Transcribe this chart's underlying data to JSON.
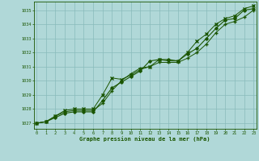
{
  "x": [
    0,
    1,
    2,
    3,
    4,
    5,
    6,
    7,
    8,
    9,
    10,
    11,
    12,
    13,
    14,
    15,
    16,
    17,
    18,
    19,
    20,
    21,
    22,
    23
  ],
  "line1": [
    1027.0,
    1027.1,
    1027.4,
    1027.7,
    1027.8,
    1027.8,
    1027.8,
    1028.6,
    1029.5,
    1029.9,
    1030.3,
    1030.7,
    1031.4,
    1031.5,
    1031.5,
    1031.4,
    1031.9,
    1032.3,
    1033.0,
    1033.7,
    1034.3,
    1034.4,
    1035.0,
    1035.1
  ],
  "line2": [
    1027.0,
    1027.1,
    1027.5,
    1027.8,
    1027.9,
    1027.9,
    1027.9,
    1028.4,
    1029.3,
    1030.0,
    1030.5,
    1030.9,
    1031.0,
    1031.3,
    1031.3,
    1031.3,
    1031.6,
    1032.0,
    1032.6,
    1033.4,
    1034.0,
    1034.2,
    1034.5,
    1035.0
  ],
  "line3": [
    1027.0,
    1027.1,
    1027.5,
    1027.9,
    1028.0,
    1028.0,
    1028.0,
    1029.0,
    1030.2,
    1030.1,
    1030.4,
    1030.8,
    1031.0,
    1031.5,
    1031.4,
    1031.4,
    1032.0,
    1032.8,
    1033.3,
    1034.0,
    1034.4,
    1034.6,
    1035.1,
    1035.3
  ],
  "bg_color": "#b0d8d8",
  "grid_color": "#88bbbb",
  "line_color": "#1a5500",
  "title": "Graphe pression niveau de la mer (hPa)",
  "ylabel_vals": [
    1027,
    1028,
    1029,
    1030,
    1031,
    1032,
    1033,
    1034,
    1035
  ],
  "ymin": 1026.6,
  "ymax": 1035.6,
  "xmin": -0.3,
  "xmax": 23.3
}
